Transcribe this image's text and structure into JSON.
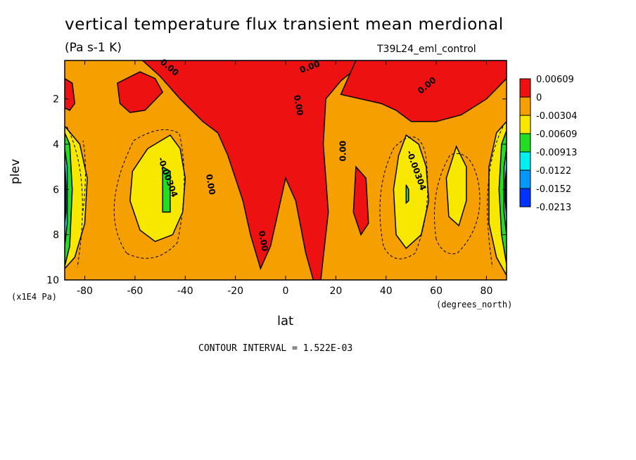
{
  "chart_data": {
    "type": "heatmap",
    "title": "vertical temperature flux transient mean merdional",
    "subtitle": "(Pa s-1 K)",
    "dataset": "T39L24_eml_control",
    "xlabel": "lat",
    "ylabel": "plev",
    "x_units": "(degrees_north)",
    "y_units": "(x1E4 Pa)",
    "xlim": [
      -88,
      88
    ],
    "ylim": [
      10,
      0.3
    ],
    "x_ticks": [
      -80,
      -60,
      -40,
      -20,
      0,
      20,
      40,
      60,
      80
    ],
    "y_ticks": [
      2,
      4,
      6,
      8,
      10
    ],
    "x_tick_labels": [
      "-80",
      "-60",
      "-40",
      "-20",
      "0",
      "20",
      "40",
      "60",
      "80"
    ],
    "y_tick_labels": [
      "2",
      "4",
      "6",
      "8",
      "10"
    ],
    "colorbar": {
      "labels": [
        "0.00609",
        "0",
        "-0.00304",
        "-0.00609",
        "-0.00913",
        "-0.0122",
        "-0.0152",
        "-0.0213"
      ],
      "colors": [
        "#ee1111",
        "#f5a000",
        "#f8e800",
        "#22dd22",
        "#00f0f0",
        "#0099ff",
        "#0033ff"
      ]
    },
    "contour_labels": [
      "0.00",
      "0.00",
      "0.00",
      "0.00",
      "0.00",
      "0.00",
      "0.00",
      "-0.00304",
      "-0.00304"
    ],
    "contour_interval_text": "CONTOUR INTERVAL = 1.522E-03",
    "regions": [
      {
        "level": "positive",
        "color": "#ee1111",
        "polygon": [
          [
            -37,
            0.3
          ],
          [
            32,
            0.3
          ],
          [
            22,
            1.2
          ],
          [
            16,
            2
          ],
          [
            15,
            4
          ],
          [
            17,
            7
          ],
          [
            15,
            9
          ],
          [
            14,
            10
          ],
          [
            11,
            10
          ],
          [
            8,
            8.8
          ],
          [
            4,
            6.5
          ],
          [
            2,
            6
          ],
          [
            0,
            5.5
          ],
          [
            -3,
            7
          ],
          [
            -6,
            8.5
          ],
          [
            -10,
            9.5
          ],
          [
            -14,
            8
          ],
          [
            -17,
            6.5
          ],
          [
            -23,
            4.5
          ],
          [
            -27,
            3.5
          ],
          [
            -33,
            3
          ],
          [
            -42,
            2
          ],
          [
            -50,
            1
          ],
          [
            -57,
            0.3
          ]
        ]
      },
      {
        "level": "positive",
        "color": "#ee1111",
        "polygon": [
          [
            -58,
            0.8
          ],
          [
            -52,
            1.1
          ],
          [
            -49,
            1.7
          ],
          [
            -56,
            2.5
          ],
          [
            -62,
            2.6
          ],
          [
            -66,
            2.2
          ],
          [
            -67,
            1.3
          ]
        ]
      },
      {
        "level": "positive",
        "color": "#ee1111",
        "polygon": [
          [
            -88,
            1.1
          ],
          [
            -85,
            1.3
          ],
          [
            -84,
            2.2
          ],
          [
            -86,
            2.5
          ],
          [
            -88,
            2.4
          ]
        ]
      },
      {
        "level": "positive",
        "color": "#ee1111",
        "polygon": [
          [
            28,
            0.3
          ],
          [
            88,
            0.3
          ],
          [
            88,
            1.1
          ],
          [
            80,
            2
          ],
          [
            70,
            2.7
          ],
          [
            60,
            3
          ],
          [
            50,
            3
          ],
          [
            44,
            2.5
          ],
          [
            38,
            2.2
          ],
          [
            30,
            2
          ],
          [
            22,
            1.8
          ]
        ]
      },
      {
        "level": "positive",
        "color": "#ee1111",
        "polygon": [
          [
            28,
            5
          ],
          [
            32,
            5.5
          ],
          [
            33,
            7.5
          ],
          [
            30,
            8
          ],
          [
            27,
            7
          ]
        ]
      },
      {
        "level": "-0.00304",
        "color": "#f8e800",
        "polygon": [
          [
            -88,
            3.2
          ],
          [
            -82,
            4
          ],
          [
            -79,
            5.5
          ],
          [
            -80,
            7.5
          ],
          [
            -84,
            9
          ],
          [
            -88,
            9.5
          ]
        ]
      },
      {
        "level": "-0.00304",
        "color": "#f8e800",
        "polygon": [
          [
            -46,
            3.6
          ],
          [
            -42,
            4.2
          ],
          [
            -40,
            5.5
          ],
          [
            -41,
            7
          ],
          [
            -45,
            8
          ],
          [
            -52,
            8.3
          ],
          [
            -58,
            7.8
          ],
          [
            -62,
            6.5
          ],
          [
            -61,
            5.2
          ],
          [
            -55,
            4.2
          ]
        ]
      },
      {
        "level": "-0.00304",
        "color": "#f8e800",
        "polygon": [
          [
            48,
            3.6
          ],
          [
            53,
            4
          ],
          [
            56,
            5
          ],
          [
            57,
            6.5
          ],
          [
            54,
            8
          ],
          [
            48,
            8.6
          ],
          [
            44,
            8
          ],
          [
            43,
            6
          ],
          [
            45,
            4.5
          ]
        ]
      },
      {
        "level": "-0.00304",
        "color": "#f8e800",
        "polygon": [
          [
            68,
            4.1
          ],
          [
            72,
            5
          ],
          [
            72,
            6.5
          ],
          [
            69,
            7.6
          ],
          [
            65,
            7.2
          ],
          [
            64,
            5.5
          ]
        ]
      },
      {
        "level": "-0.00304",
        "color": "#f8e800",
        "polygon": [
          [
            88,
            3
          ],
          [
            88,
            9.8
          ],
          [
            84,
            9
          ],
          [
            81,
            7.5
          ],
          [
            81,
            5
          ],
          [
            84,
            3.5
          ]
        ]
      },
      {
        "level": "-0.00609",
        "color": "#22dd22",
        "polygon": [
          [
            -49,
            5
          ],
          [
            -46,
            5.2
          ],
          [
            -46,
            6.5
          ],
          [
            -46,
            7
          ],
          [
            -49,
            7
          ]
        ]
      },
      {
        "level": "-0.00609",
        "color": "#22dd22",
        "polygon": [
          [
            48,
            5.8
          ],
          [
            49,
            6
          ],
          [
            49,
            6.5
          ],
          [
            48,
            6.6
          ]
        ]
      },
      {
        "level": "-0.00609",
        "color": "#22dd22",
        "polygon": [
          [
            -88,
            3.5
          ],
          [
            -86,
            4
          ],
          [
            -85,
            6
          ],
          [
            -86,
            8.5
          ],
          [
            -88,
            9.4
          ]
        ]
      },
      {
        "level": "-0.00609",
        "color": "#22dd22",
        "polygon": [
          [
            88,
            3.4
          ],
          [
            88,
            9.3
          ],
          [
            86,
            8
          ],
          [
            85,
            6
          ],
          [
            86,
            4
          ]
        ]
      },
      {
        "level": "-0.00913",
        "color": "#00f0f0",
        "polygon": [
          [
            -88,
            4.2
          ],
          [
            -87,
            5
          ],
          [
            -87,
            7.5
          ],
          [
            -88,
            8.5
          ]
        ]
      },
      {
        "level": "-0.00913",
        "color": "#00f0f0",
        "polygon": [
          [
            88,
            4.2
          ],
          [
            88,
            8
          ],
          [
            87,
            7
          ],
          [
            87,
            5
          ]
        ]
      },
      {
        "level": "-0.0122",
        "color": "#0099ff",
        "polygon": [
          [
            -88,
            4.8
          ],
          [
            -87.5,
            5.8
          ],
          [
            -87.5,
            7
          ],
          [
            -88,
            7.5
          ]
        ]
      },
      {
        "level": "-0.0122",
        "color": "#0099ff",
        "polygon": [
          [
            88,
            5
          ],
          [
            88,
            7.2
          ],
          [
            87.5,
            6.5
          ],
          [
            87.5,
            5.6
          ]
        ]
      }
    ]
  }
}
